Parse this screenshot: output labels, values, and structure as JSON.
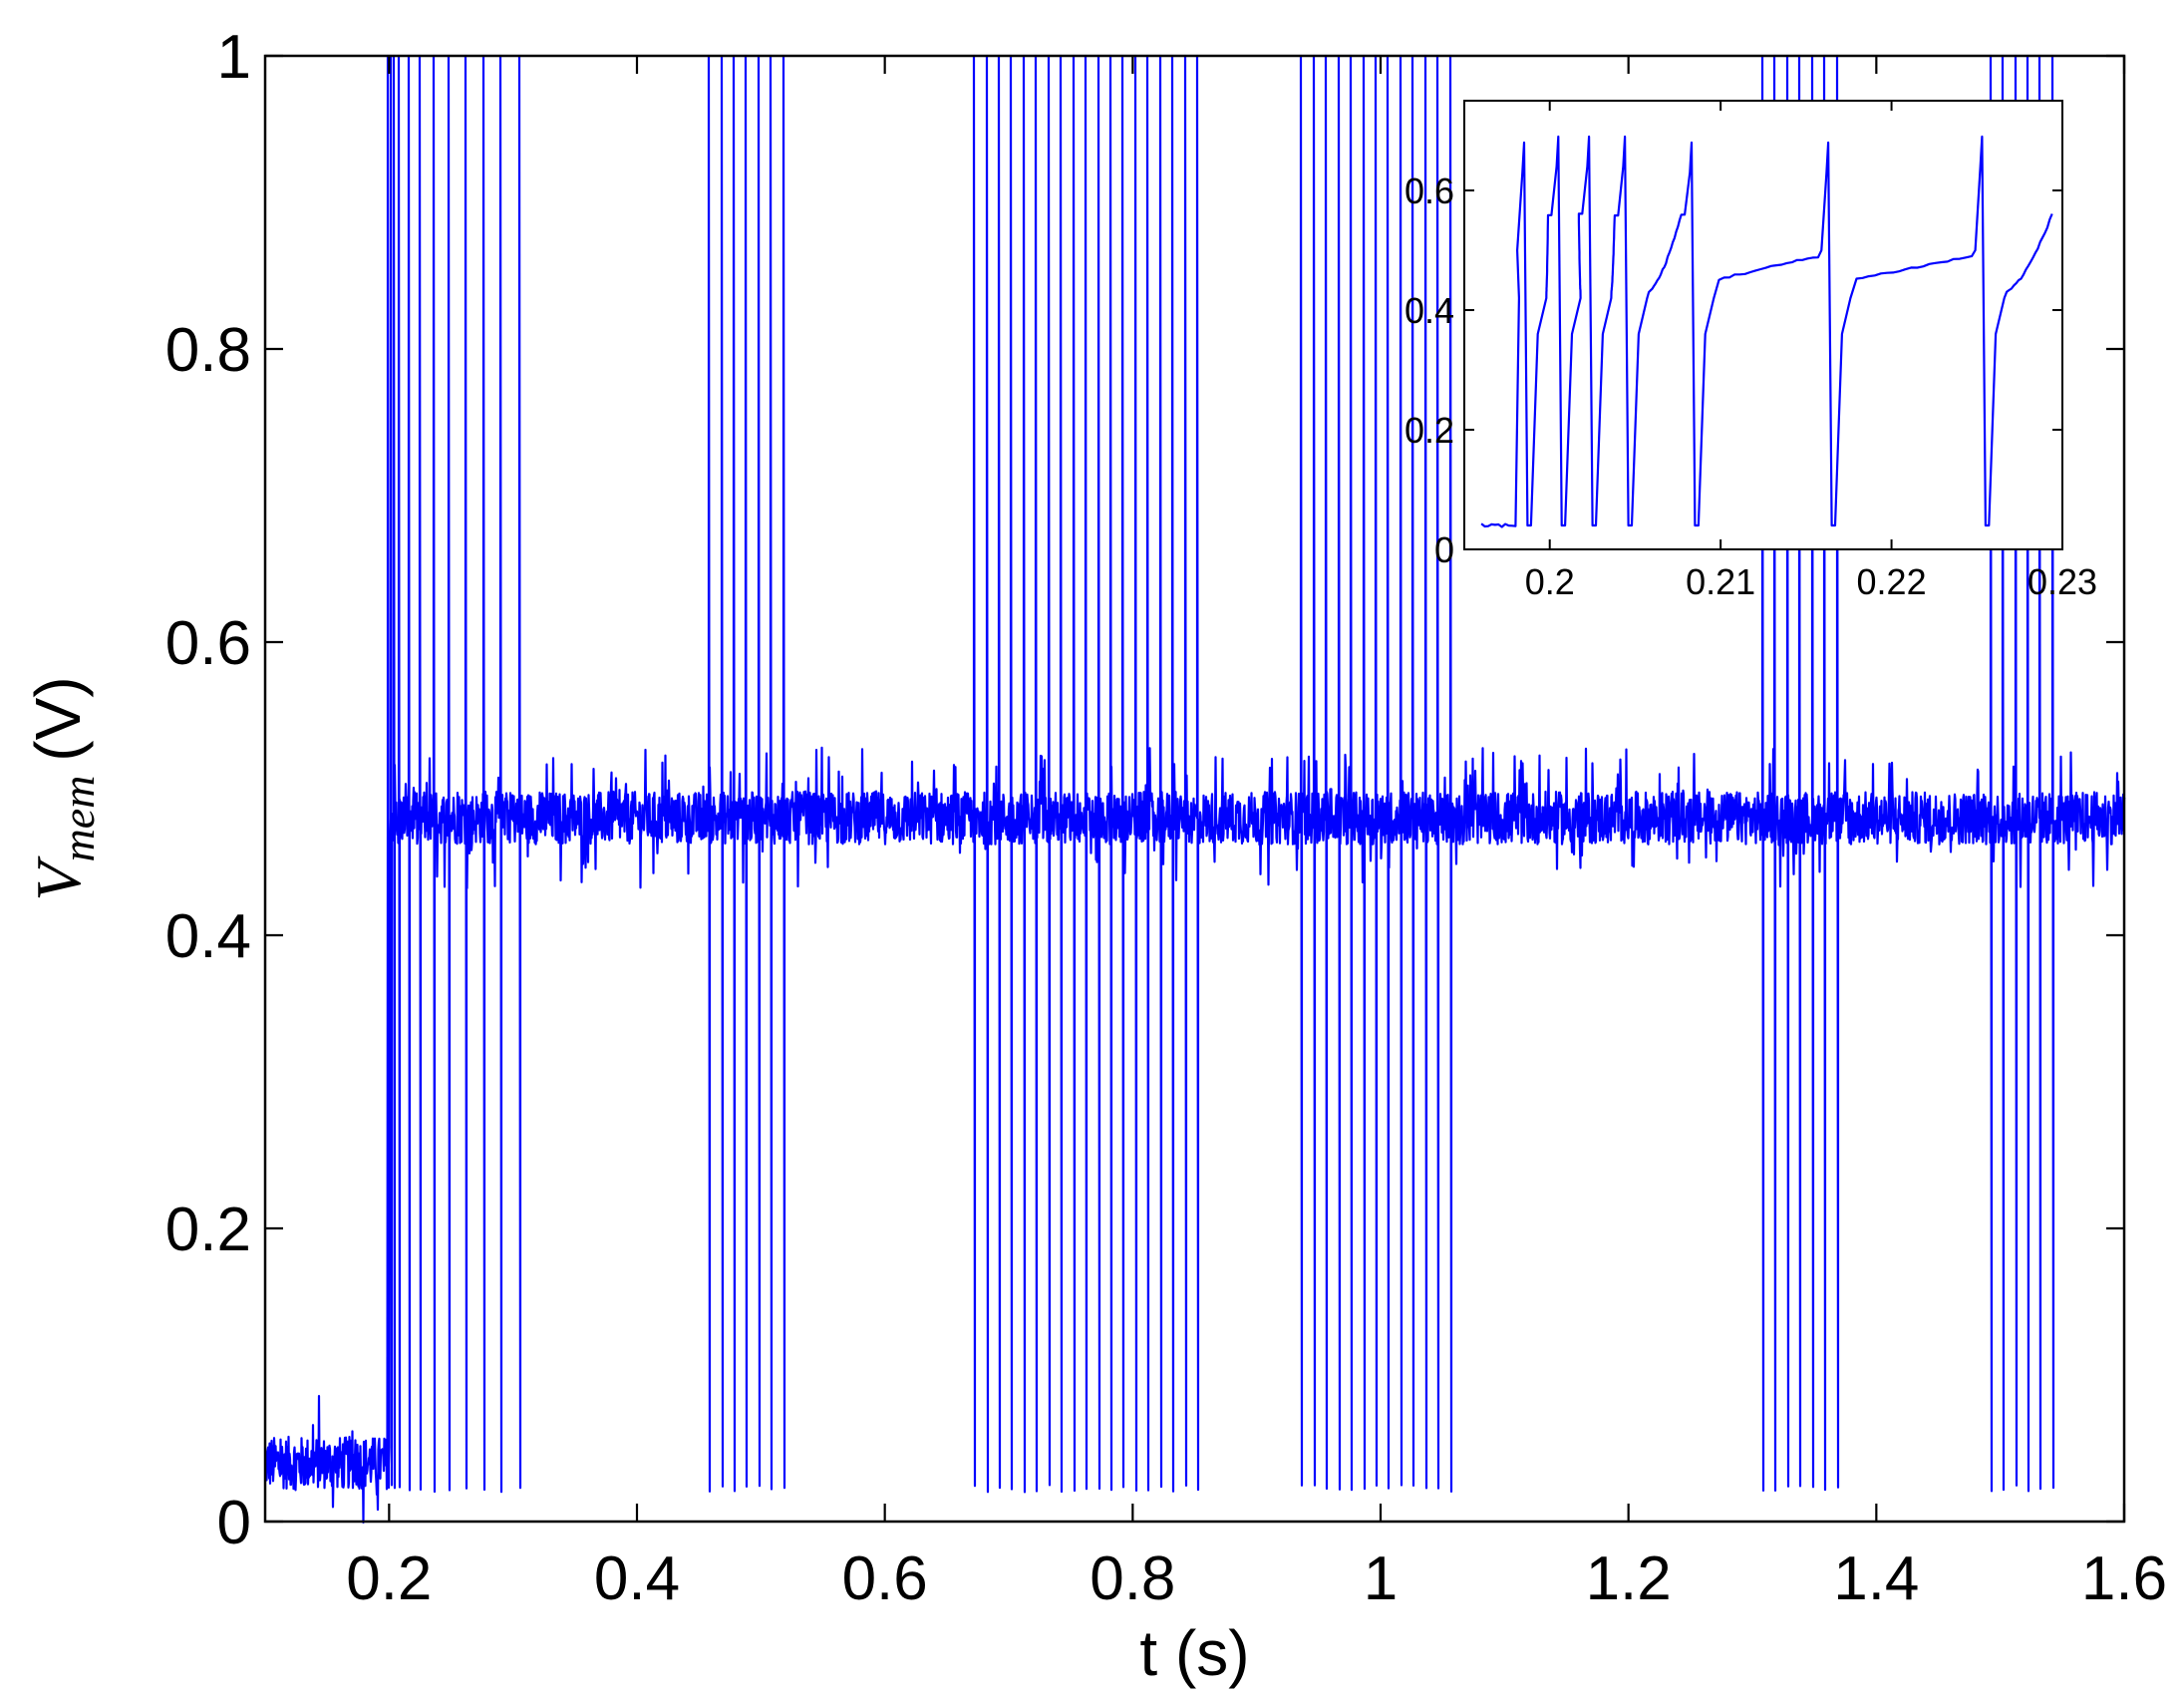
{
  "chart_data": [
    {
      "type": "line",
      "panel": "main",
      "title": "",
      "xlabel": "t (s)",
      "ylabel_symbol": "V",
      "ylabel_subscript": "mem",
      "ylabel_unit": "(V)",
      "xlim": [
        0.1,
        1.6
      ],
      "ylim": [
        0,
        1
      ],
      "xticks": [
        0.2,
        0.4,
        0.6,
        0.8,
        1.0,
        1.2,
        1.4,
        1.6
      ],
      "xtick_labels": [
        "0.2",
        "0.4",
        "0.6",
        "0.8",
        "1",
        "1.2",
        "1.4",
        "1.6"
      ],
      "yticks": [
        0,
        0.2,
        0.4,
        0.6,
        0.8,
        1.0
      ],
      "ytick_labels": [
        "0",
        "0.2",
        "0.4",
        "0.6",
        "0.8",
        "1"
      ],
      "grid": false,
      "line_color": "#0000ff",
      "baseline_before_stimulus_V": 0.04,
      "stimulus_onset_s": 0.2,
      "resting_level_V": 0.48,
      "noise_amplitude_V": 0.03,
      "spike_peak_V": 1.0,
      "spike_trough_V": 0.025,
      "bursts_s": [
        [
          0.199,
          0.201,
          0.204,
          0.208,
          0.216,
          0.225,
          0.236,
          0.248,
          0.262,
          0.276,
          0.29,
          0.305
        ],
        [
          0.458,
          0.468,
          0.478,
          0.488,
          0.498,
          0.508,
          0.518
        ],
        [
          0.672,
          0.682,
          0.692,
          0.702,
          0.712,
          0.722,
          0.732,
          0.742,
          0.752,
          0.762,
          0.772,
          0.782,
          0.792,
          0.802,
          0.812,
          0.822,
          0.832,
          0.842,
          0.852
        ],
        [
          0.936,
          0.946,
          0.956,
          0.966,
          0.976,
          0.986,
          0.996,
          1.006,
          1.016,
          1.026,
          1.036,
          1.046,
          1.056
        ],
        [
          1.308,
          1.318,
          1.328,
          1.338,
          1.348,
          1.358,
          1.368
        ],
        [
          1.492,
          1.502,
          1.512,
          1.522,
          1.532,
          1.542
        ]
      ]
    },
    {
      "type": "line",
      "panel": "inset",
      "xlim": [
        0.195,
        0.23
      ],
      "ylim": [
        0,
        0.75
      ],
      "xticks": [
        0.2,
        0.21,
        0.22,
        0.23
      ],
      "xtick_labels": [
        "0.2",
        "0.21",
        "0.22",
        "0.23"
      ],
      "yticks": [
        0,
        0.2,
        0.4,
        0.6
      ],
      "ytick_labels": [
        "0",
        "0.2",
        "0.4",
        "0.6"
      ],
      "grid": false,
      "line_color": "#0000ff",
      "baseline_V": 0.04,
      "trough_V": 0.04,
      "spikes": [
        {
          "t": 0.1985,
          "peak_V": 0.68
        },
        {
          "t": 0.2005,
          "peak_V": 0.69
        },
        {
          "t": 0.2023,
          "peak_V": 0.69
        },
        {
          "t": 0.2044,
          "peak_V": 0.69
        },
        {
          "t": 0.2083,
          "peak_V": 0.68
        },
        {
          "t": 0.2163,
          "peak_V": 0.68
        },
        {
          "t": 0.2253,
          "peak_V": 0.69
        }
      ],
      "plateau_V": 0.45,
      "trace_end_V": 0.48
    }
  ]
}
